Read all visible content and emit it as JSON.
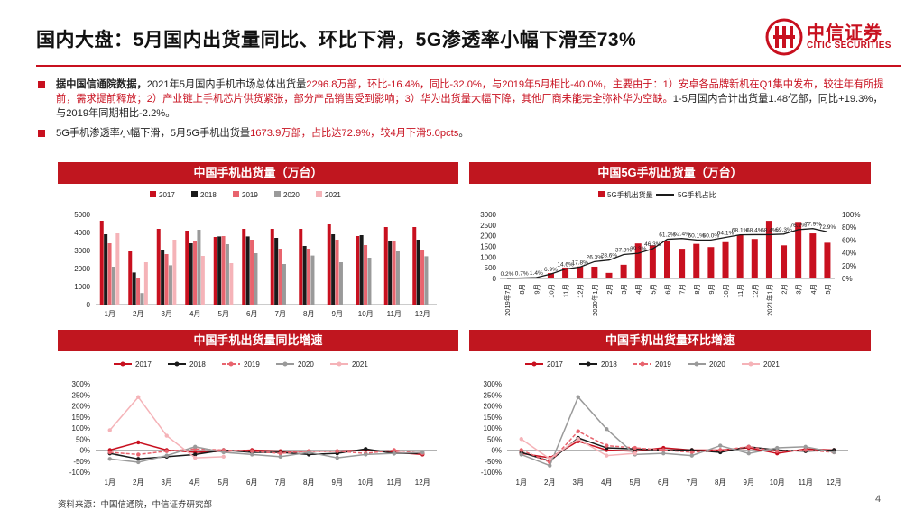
{
  "header": {
    "title": "国内大盘：5月国内出货量同比、环比下滑，5G渗透率小幅下滑至73%",
    "logo_cn": "中信证券",
    "logo_en": "CITIC SECURITIES"
  },
  "bullets": {
    "b1": {
      "lead": "据中国信通院数据，",
      "t1": "2021年5月国内手机市场总体出货量",
      "r1": "2296.8万部，环比-16.4%，同比-32.0%，与2019年5月相比-40.0%，主要由于：1）安卓各品牌新机在Q1集中发布，较往年有所提前，需求提前释放；2）产业链上手机芯片供货紧张，部分产品销售受到影响；3）华为出货量大幅下降，其他厂商未能完全弥补华为空缺。",
      "t2": "1-5月国内合计出货量1.48亿部，同比+19.3%，与2019年同期相比-2.2%。"
    },
    "b2": {
      "t1": "5G手机渗透率小幅下滑，5月5G手机出货量",
      "r1": "1673.9万部，占比达72.9%，较4月下滑5.0pcts",
      "t2": "。"
    }
  },
  "chart_titles": {
    "c1": "中国手机出货量（万台）",
    "c2": "中国5G手机出货量（万台）",
    "c3": "中国手机出货量同比增速",
    "c4": "中国手机出货量环比增速"
  },
  "colors": {
    "brand": "#c8101f",
    "s2017": "#c8101f",
    "s2018": "#1a1a1a",
    "s2019": "#e8646e",
    "s2020": "#9a9a9a",
    "s2021": "#f5b3b8"
  },
  "chart_data": [
    {
      "type": "bar",
      "title": "中国手机出货量（万台）",
      "categories": [
        "1月",
        "2月",
        "3月",
        "4月",
        "5月",
        "6月",
        "7月",
        "8月",
        "9月",
        "10月",
        "11月",
        "12月"
      ],
      "ylim": [
        0,
        5000
      ],
      "yticks": [
        "0",
        "1000",
        "2000",
        "3000",
        "4000",
        "5000"
      ],
      "series": [
        {
          "name": "2017",
          "values": [
            4650,
            2950,
            4200,
            4100,
            3750,
            4200,
            4200,
            4200,
            4450,
            3800,
            4300,
            4300
          ]
        },
        {
          "name": "2018",
          "values": [
            3900,
            1780,
            3000,
            3400,
            3780,
            3780,
            3700,
            3250,
            3900,
            3850,
            3550,
            3600
          ]
        },
        {
          "name": "2019",
          "values": [
            3400,
            1450,
            2800,
            3500,
            3800,
            3600,
            3100,
            3100,
            3600,
            3300,
            3500,
            3050
          ]
        },
        {
          "name": "2020",
          "values": [
            2100,
            640,
            2180,
            4150,
            3350,
            2850,
            2250,
            2720,
            2350,
            2600,
            2950,
            2680
          ]
        },
        {
          "name": "2021",
          "values": [
            3950,
            2350,
            3600,
            2700,
            2300,
            null,
            null,
            null,
            null,
            null,
            null,
            null
          ]
        }
      ]
    },
    {
      "type": "bar+line",
      "title": "中国5G手机出货量（万台）",
      "categories": [
        "2019年7月",
        "8月",
        "9月",
        "10月",
        "11月",
        "12月",
        "2020年1月",
        "2月",
        "3月",
        "4月",
        "5月",
        "6月",
        "7月",
        "8月",
        "9月",
        "10月",
        "11月",
        "12月",
        "2021年1月",
        "2月",
        "3月",
        "4月",
        "5月"
      ],
      "ylim": [
        0,
        3000
      ],
      "yticks": [
        "0",
        "500",
        "1000",
        "1500",
        "2000",
        "2500",
        "3000"
      ],
      "y2ticks": [
        "0%",
        "20%",
        "40%",
        "60%",
        "80%",
        "100%"
      ],
      "bar_series": {
        "name": "5G手机出货量",
        "values": [
          5,
          20,
          55,
          250,
          510,
          560,
          550,
          260,
          640,
          1640,
          1550,
          1750,
          1390,
          1620,
          1470,
          1700,
          2050,
          1850,
          2700,
          1550,
          2650,
          2110,
          1674
        ]
      },
      "line_series": {
        "name": "5G手机占比",
        "values": [
          0.2,
          0.7,
          1.4,
          6.9,
          14.6,
          17.8,
          26.3,
          28.6,
          37.3,
          39.3,
          46.3,
          61.2,
          62.4,
          60.1,
          60.0,
          64.1,
          68.1,
          68.4,
          68.4,
          69.3,
          76.2,
          77.9,
          72.9
        ]
      },
      "line_labels": [
        "0.2%",
        "0.7%",
        "1.4%",
        "6.9%",
        "14.6%",
        "17.8%",
        "26.3%",
        "28.6%",
        "37.3%",
        "39.3%",
        "46.3%",
        "61.2%",
        "62.4%",
        "60.1%",
        "60.0%",
        "64.1%",
        "68.1%",
        "68.4%",
        "68.4%",
        "69.3%",
        "76.2%",
        "77.9%",
        "72.9%"
      ]
    },
    {
      "type": "line",
      "title": "中国手机出货量同比增速",
      "categories": [
        "1月",
        "2月",
        "3月",
        "4月",
        "5月",
        "6月",
        "7月",
        "8月",
        "9月",
        "10月",
        "11月",
        "12月"
      ],
      "ylim": [
        -100,
        300
      ],
      "yticks": [
        "-100%",
        "-50%",
        "0%",
        "50%",
        "100%",
        "150%",
        "200%",
        "250%",
        "300%"
      ],
      "series": [
        {
          "name": "2017",
          "values": [
            0,
            35,
            0,
            -10,
            -5,
            0,
            -5,
            -5,
            -5,
            0,
            -10,
            -20
          ]
        },
        {
          "name": "2018",
          "values": [
            -15,
            -40,
            -30,
            -20,
            0,
            -10,
            -10,
            -20,
            -15,
            5,
            -15,
            -15
          ]
        },
        {
          "name": "2019",
          "values": [
            -10,
            -20,
            -5,
            5,
            0,
            -5,
            -15,
            -5,
            -5,
            -15,
            0,
            -15
          ]
        },
        {
          "name": "2020",
          "values": [
            -40,
            -55,
            -25,
            15,
            -10,
            -20,
            -30,
            -10,
            -35,
            -20,
            -15,
            -10
          ]
        },
        {
          "name": "2021",
          "values": [
            90,
            240,
            65,
            -35,
            -30,
            null,
            null,
            null,
            null,
            null,
            null,
            null
          ]
        }
      ]
    },
    {
      "type": "line",
      "title": "中国手机出货量环比增速",
      "categories": [
        "1月",
        "2月",
        "3月",
        "4月",
        "5月",
        "6月",
        "7月",
        "8月",
        "9月",
        "10月",
        "11月",
        "12月"
      ],
      "ylim": [
        -100,
        300
      ],
      "yticks": [
        "-100%",
        "-50%",
        "0%",
        "50%",
        "100%",
        "150%",
        "200%",
        "250%",
        "300%"
      ],
      "series": [
        {
          "name": "2017",
          "values": [
            -15,
            -35,
            40,
            0,
            -5,
            10,
            0,
            0,
            10,
            -15,
            5,
            0
          ]
        },
        {
          "name": "2018",
          "values": [
            -10,
            -50,
            55,
            10,
            5,
            0,
            0,
            -10,
            15,
            0,
            -5,
            0
          ]
        },
        {
          "name": "2019",
          "values": [
            0,
            -55,
            85,
            20,
            10,
            0,
            -10,
            0,
            15,
            -5,
            0,
            -10
          ]
        },
        {
          "name": "2020",
          "values": [
            -20,
            -70,
            240,
            95,
            -20,
            -15,
            -25,
            20,
            -15,
            10,
            15,
            -10
          ]
        },
        {
          "name": "2021",
          "values": [
            50,
            -40,
            50,
            -25,
            -15,
            null,
            null,
            null,
            null,
            null,
            null,
            null
          ]
        }
      ]
    }
  ],
  "footer": {
    "source": "资料来源：中国信通院，中信证券研究部",
    "page": "4"
  }
}
